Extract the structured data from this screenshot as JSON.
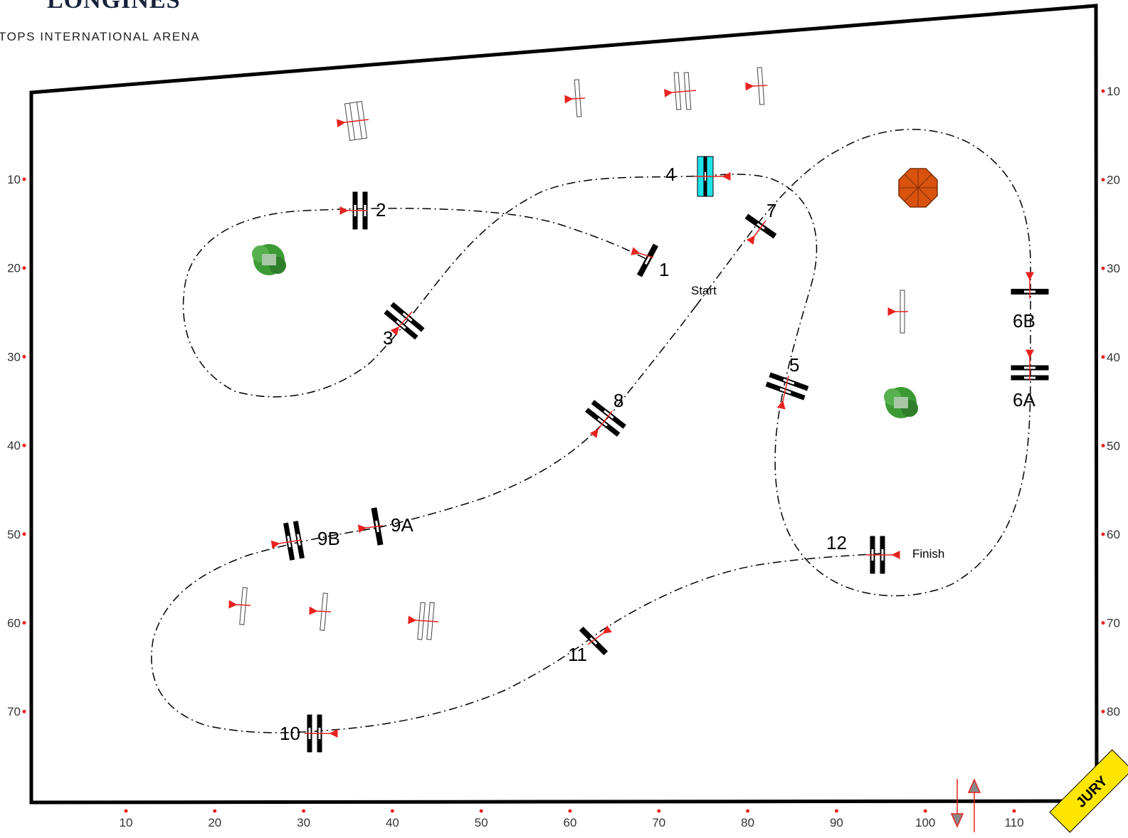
{
  "brand": {
    "logo_text": "LONGINES",
    "arena_name": "TOPS INTERNATIONAL ARENA"
  },
  "course": {
    "start_label": "Start",
    "finish_label": "Finish",
    "jury_label": "JURY",
    "bottom_scale": [
      "10",
      "20",
      "30",
      "40",
      "50",
      "60",
      "70",
      "80",
      "90",
      "100",
      "110"
    ],
    "left_scale": [
      "10",
      "20",
      "30",
      "40",
      "50",
      "60",
      "70"
    ],
    "right_scale": [
      "10",
      "20",
      "30",
      "40",
      "50",
      "60",
      "70",
      "80"
    ],
    "obstacles": [
      {
        "label": "1",
        "kind": "vertical"
      },
      {
        "label": "2",
        "kind": "oxer"
      },
      {
        "label": "3",
        "kind": "oxer"
      },
      {
        "label": "4",
        "kind": "water-vertical"
      },
      {
        "label": "5",
        "kind": "oxer"
      },
      {
        "label": "6A",
        "kind": "oxer"
      },
      {
        "label": "6B",
        "kind": "vertical"
      },
      {
        "label": "7",
        "kind": "vertical"
      },
      {
        "label": "8",
        "kind": "oxer"
      },
      {
        "label": "9A",
        "kind": "vertical"
      },
      {
        "label": "9B",
        "kind": "oxer"
      },
      {
        "label": "10",
        "kind": "oxer"
      },
      {
        "label": "11",
        "kind": "vertical"
      },
      {
        "label": "12",
        "kind": "oxer"
      }
    ],
    "colors": {
      "border": "#000000",
      "direction_arrow": "#e8231f",
      "water": "#1fe3e8",
      "tree": "#3c9a35",
      "umbrella": "#d9530f",
      "jury_badge": "#ffe600"
    }
  }
}
